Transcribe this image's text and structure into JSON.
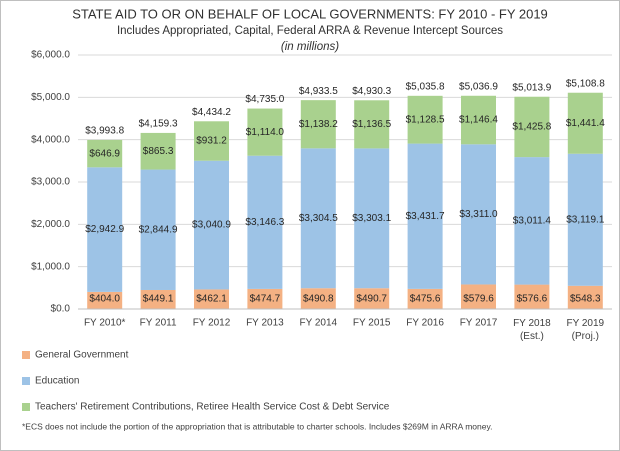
{
  "chart_data": {
    "type": "stacked_bar",
    "title": "STATE AID TO OR ON BEHALF OF LOCAL GOVERNMENTS: FY 2010 - FY 2019",
    "subtitle": "Includes Appropriated, Capital, Federal ARRA & Revenue Intercept Sources",
    "units_note": "(in millions)",
    "categories": [
      "FY 2010*",
      "FY 2011",
      "FY 2012",
      "FY 2013",
      "FY 2014",
      "FY 2015",
      "FY 2016",
      "FY 2017",
      "FY 2018\n(Est.)",
      "FY 2019\n(Proj.)"
    ],
    "series": [
      {
        "name": "General Government",
        "color": "#f4b183",
        "values": [
          404.0,
          449.1,
          462.1,
          474.7,
          490.8,
          490.7,
          475.6,
          579.6,
          576.6,
          548.3
        ],
        "value_labels": [
          "$404.0",
          "$449.1",
          "$462.1",
          "$474.7",
          "$490.8",
          "$490.7",
          "$475.6",
          "$579.6",
          "$576.6",
          "$548.3"
        ]
      },
      {
        "name": "Education",
        "color": "#9dc3e6",
        "values": [
          2942.9,
          2844.9,
          3040.9,
          3146.3,
          3304.5,
          3303.1,
          3431.7,
          3311.0,
          3011.4,
          3119.1
        ],
        "value_labels": [
          "$2,942.9",
          "$2,844.9",
          "$3,040.9",
          "$3,146.3",
          "$3,304.5",
          "$3,303.1",
          "$3,431.7",
          "$3,311.0",
          "$3,011.4",
          "$3,119.1"
        ]
      },
      {
        "name": "Teachers' Retirement Contributions, Retiree Health Service Cost & Debt Service",
        "color": "#a9d18e",
        "values": [
          646.9,
          865.3,
          931.2,
          1114.0,
          1138.2,
          1136.5,
          1128.5,
          1146.4,
          1425.8,
          1441.4
        ],
        "value_labels": [
          "$646.9",
          "$865.3",
          "$931.2",
          "$1,114.0",
          "$1,138.2",
          "$1,136.5",
          "$1,128.5",
          "$1,146.4",
          "$1,425.8",
          "$1,441.4"
        ]
      }
    ],
    "totals": [
      3993.8,
      4159.3,
      4434.2,
      4735.0,
      4933.5,
      4930.3,
      5035.8,
      5036.9,
      5013.9,
      5108.8
    ],
    "total_labels": [
      "$3,993.8",
      "$4,159.3",
      "$4,434.2",
      "$4,735.0",
      "$4,933.5",
      "$4,930.3",
      "$5,035.8",
      "$5,036.9",
      "$5,013.9",
      "$5,108.8"
    ],
    "ylim": [
      0,
      6000
    ],
    "yticks": [
      {
        "value": 0,
        "label": "$0.0"
      },
      {
        "value": 1000,
        "label": "$1,000.0"
      },
      {
        "value": 2000,
        "label": "$2,000.0"
      },
      {
        "value": 3000,
        "label": "$3,000.0"
      },
      {
        "value": 4000,
        "label": "$4,000.0"
      },
      {
        "value": 5000,
        "label": "$5,000.0"
      },
      {
        "value": 6000,
        "label": "$6,000.0"
      }
    ],
    "grid": true,
    "footnote": "*ECS does not include the portion of the appropriation that is attributable to charter schools. Includes $269M in ARRA money."
  }
}
